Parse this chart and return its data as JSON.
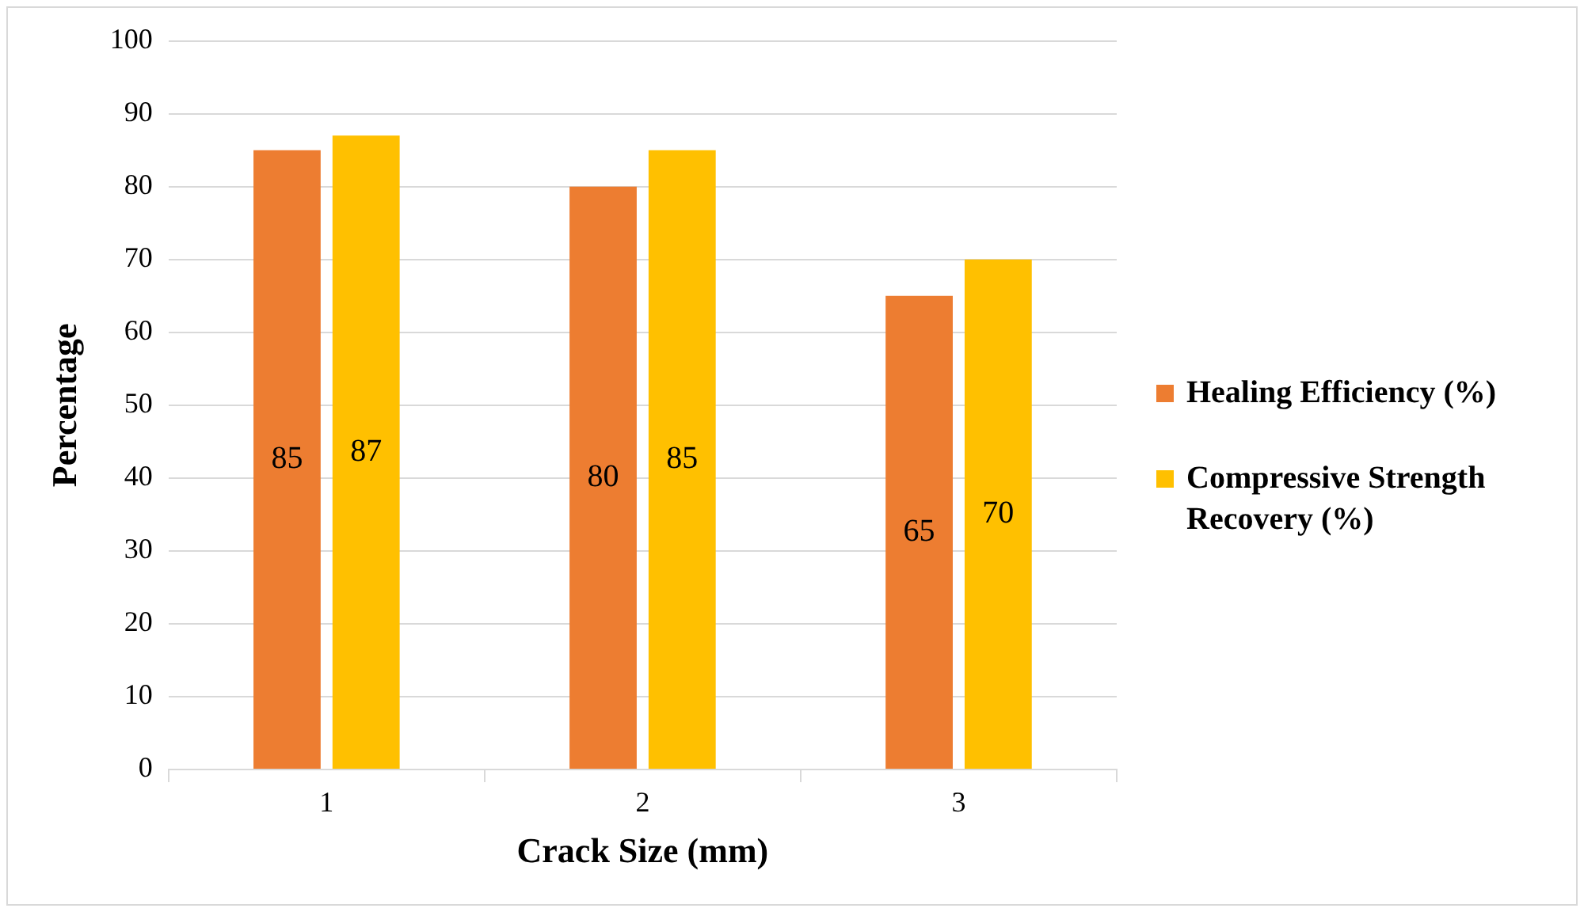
{
  "chart_data": {
    "type": "bar",
    "xlabel": "Crack Size (mm)",
    "ylabel": "Percentage",
    "categories": [
      "1",
      "2",
      "3"
    ],
    "series": [
      {
        "name": "Healing Efficiency (%)",
        "color": "#ed7d31",
        "values": [
          85,
          80,
          65
        ]
      },
      {
        "name": "Compressive Strength Recovery (%)",
        "color": "#ffc000",
        "values": [
          87,
          85,
          70
        ]
      }
    ],
    "ylim": [
      0,
      100
    ],
    "yticks": [
      0,
      10,
      20,
      30,
      40,
      50,
      60,
      70,
      80,
      90,
      100
    ],
    "grid": "y",
    "legend": "right",
    "data_labels": true
  }
}
